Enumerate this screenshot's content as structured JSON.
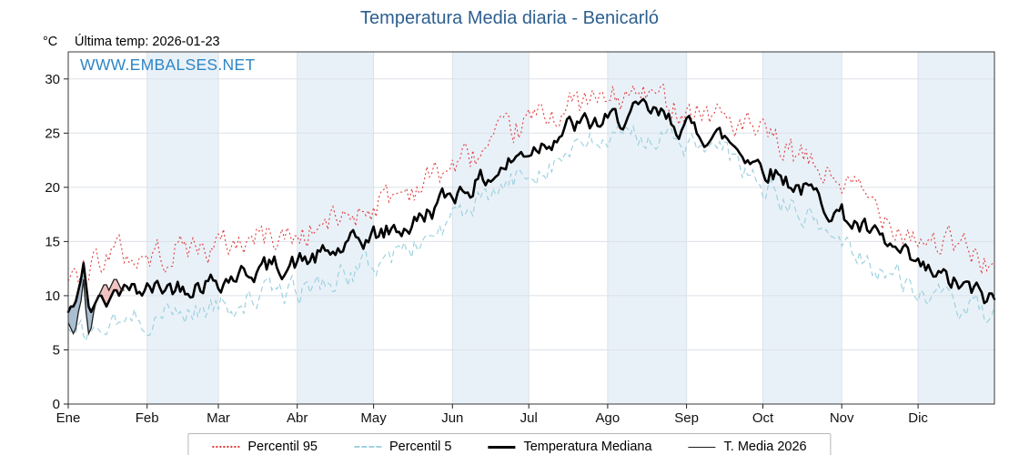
{
  "title": "Temperatura Media diaria - Benicarló",
  "y_unit_label": "°C",
  "last_temp_label": "Última temp: 2026-01-23",
  "watermark": "WWW.EMBALSES.NET",
  "colors": {
    "title": "#2d5f8f",
    "watermark": "#2e86c5",
    "p95": "#e03b3b",
    "p5": "#9fd2e0",
    "median": "#000000",
    "t2026": "#1c1c1c",
    "band": "#e9f1f8",
    "grid": "#dbe1e8",
    "frame": "#3a3a3a",
    "fill_below": "#7d9db8",
    "fill_above": "#e9a3a3"
  },
  "legend": {
    "items": [
      {
        "label": "Percentil 95",
        "series": "p95"
      },
      {
        "label": "Percentil 5",
        "series": "p5"
      },
      {
        "label": "Temperatura Mediana",
        "series": "median"
      },
      {
        "label": "T. Media 2026",
        "series": "t2026"
      }
    ]
  },
  "chart_data": {
    "type": "line",
    "title": "Temperatura Media diaria - Benicarló",
    "xlabel": "",
    "ylabel": "°C",
    "x_unit": "day_of_year",
    "days": 365,
    "y_ticks": [
      0,
      5,
      10,
      15,
      20,
      25,
      30
    ],
    "y_max": 32.5,
    "months": [
      "Ene",
      "Feb",
      "Mar",
      "Abr",
      "May",
      "Jun",
      "Jul",
      "Ago",
      "Sep",
      "Oct",
      "Nov",
      "Dic"
    ],
    "month_starts": [
      0,
      31,
      59,
      90,
      120,
      151,
      181,
      212,
      243,
      273,
      304,
      334
    ],
    "seed": 42,
    "anchors_day": [
      0,
      15,
      31,
      45,
      59,
      75,
      90,
      105,
      120,
      135,
      151,
      166,
      181,
      196,
      212,
      227,
      243,
      258,
      273,
      288,
      304,
      319,
      334,
      349,
      364
    ],
    "series": [
      {
        "name": "Percentil 95",
        "key": "p95",
        "style": "dotted",
        "anchors_value": [
          11.5,
          14,
          13.5,
          14.5,
          14.5,
          15.5,
          15.5,
          17,
          18.5,
          20,
          22,
          23.5,
          26,
          27.5,
          28,
          28.5,
          27.5,
          26.5,
          24.5,
          22.5,
          20.5,
          18,
          15.5,
          14.5,
          13
        ],
        "noise": 1.6
      },
      {
        "name": "Percentil 5",
        "key": "p5",
        "style": "dashed",
        "anchors_value": [
          6,
          7,
          8,
          8.5,
          9,
          10,
          10.5,
          11.5,
          13,
          14.5,
          17,
          19,
          21.5,
          23,
          24.5,
          25,
          24,
          23,
          20,
          17.5,
          15,
          12.5,
          10.5,
          9,
          8
        ],
        "noise": 1.3
      },
      {
        "name": "Temperatura Mediana",
        "key": "median",
        "style": "solid",
        "anchors_value": [
          8.5,
          10,
          10.5,
          11,
          11.5,
          12.5,
          13,
          14,
          15.5,
          16.5,
          19.5,
          21,
          23.5,
          25.5,
          26,
          27,
          25.5,
          24.5,
          22,
          20,
          17.5,
          15,
          12.5,
          11,
          9.5
        ],
        "noise": 1.1,
        "jan_values": [
          8.5,
          9,
          9,
          9.5,
          10.5,
          11.5,
          13,
          11,
          9,
          8.5,
          9,
          9.5,
          10,
          10,
          9.5,
          9,
          9.5,
          10,
          10.5,
          10.5,
          10,
          10.5,
          11
        ]
      },
      {
        "name": "T. Media 2026",
        "key": "t2026",
        "style": "thin",
        "start_day": 0,
        "values": [
          7.5,
          7,
          6.5,
          7,
          8.5,
          9.5,
          11.5,
          8.5,
          6.5,
          7,
          8.5,
          9.5,
          10,
          10.5,
          11,
          11,
          10.5,
          11,
          11.5,
          11.5,
          11,
          10.5,
          10.5
        ]
      }
    ],
    "comparison_fill": {
      "above_median": "fill_above",
      "below_median": "fill_below"
    }
  }
}
